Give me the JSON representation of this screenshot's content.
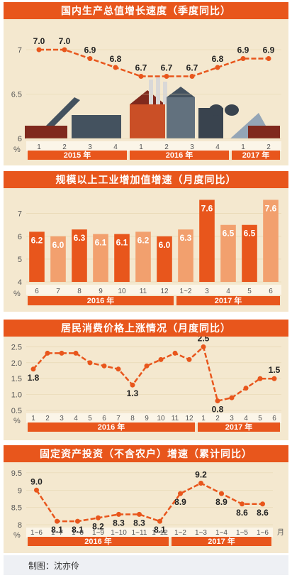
{
  "credit": "制图：沈亦伶",
  "colors": {
    "accent": "#e8561c",
    "light": "#f2a06e",
    "panel": "#f4e8cf",
    "dark_bar": "#e8561c"
  },
  "chart_data": [
    {
      "type": "line",
      "title": "国内生产总值增长速度（季度同比）",
      "ylabel": "%",
      "ylim": [
        6,
        7.2
      ],
      "yticks": [
        "6",
        "6.5",
        "7"
      ],
      "categories": [
        "1",
        "2",
        "3",
        "4",
        "1",
        "2",
        "3",
        "4",
        "1",
        "2"
      ],
      "values": [
        7.0,
        7.0,
        6.9,
        6.8,
        6.7,
        6.7,
        6.7,
        6.8,
        6.9,
        6.9
      ],
      "value_labels": [
        "7.0",
        "7.0",
        "6.9",
        "6.8",
        "6.7",
        "6.7",
        "6.7",
        "6.8",
        "6.9",
        "6.9"
      ],
      "groups": [
        {
          "label": "2015 年",
          "from": 0,
          "to": 3
        },
        {
          "label": "2016 年",
          "from": 4,
          "to": 7
        },
        {
          "label": "2017 年",
          "from": 8,
          "to": 9
        }
      ]
    },
    {
      "type": "bar",
      "title": "规模以上工业增加值增速（月度同比）",
      "ylabel": "%",
      "ylim": [
        4,
        7.8
      ],
      "yticks": [
        "4",
        "5",
        "6",
        "7"
      ],
      "categories": [
        "6",
        "7",
        "8",
        "9",
        "10",
        "11",
        "12",
        "1~2",
        "3",
        "4",
        "5",
        "6"
      ],
      "values": [
        6.2,
        6.0,
        6.3,
        6.1,
        6.1,
        6.2,
        6.0,
        6.3,
        7.6,
        6.5,
        6.5,
        7.6
      ],
      "value_labels": [
        "6.2",
        "6.0",
        "6.3",
        "6.1",
        "6.1",
        "6.2",
        "6.0",
        "6.3",
        "7.6",
        "6.5",
        "6.5",
        "7.6"
      ],
      "groups": [
        {
          "label": "2016 年",
          "from": 0,
          "to": 6
        },
        {
          "label": "2017 年",
          "from": 7,
          "to": 11
        }
      ]
    },
    {
      "type": "line",
      "title": "居民消费价格上涨情况（月度同比）",
      "ylabel": "%",
      "ylim": [
        0.5,
        2.6
      ],
      "yticks": [
        "0.5",
        "1.0",
        "1.5",
        "2.0",
        "2.5"
      ],
      "categories": [
        "1",
        "2",
        "3",
        "4",
        "5",
        "6",
        "7",
        "8",
        "9",
        "10",
        "11",
        "12",
        "1",
        "2",
        "3",
        "4",
        "5",
        "6"
      ],
      "values": [
        1.8,
        2.3,
        2.3,
        2.3,
        2.0,
        1.9,
        1.8,
        1.3,
        1.9,
        2.1,
        2.3,
        2.1,
        2.5,
        0.8,
        0.9,
        1.2,
        1.5,
        1.5
      ],
      "value_labels": [
        "1.8",
        "",
        "",
        "",
        "",
        "",
        "",
        "1.3",
        "",
        "",
        "",
        "",
        "2.5",
        "0.8",
        "",
        "",
        "",
        "1.5"
      ],
      "groups": [
        {
          "label": "2016 年",
          "from": 0,
          "to": 11
        },
        {
          "label": "2017 年",
          "from": 12,
          "to": 17
        }
      ]
    },
    {
      "type": "line",
      "title": "固定资产投资（不含农户）增速（累计同比）",
      "ylabel": "%",
      "xunit": "月",
      "ylim": [
        8,
        9.6
      ],
      "yticks": [
        "8",
        "8.5",
        "9",
        "9.5"
      ],
      "categories": [
        "1~6",
        "1~7",
        "1~8",
        "1~9",
        "1~10",
        "1~11",
        "1~12",
        "1~2",
        "1~3",
        "1~4",
        "1~5",
        "1~6"
      ],
      "values": [
        9.0,
        8.1,
        8.1,
        8.2,
        8.3,
        8.3,
        8.1,
        8.9,
        9.2,
        8.9,
        8.6,
        8.6
      ],
      "value_labels": [
        "9.0",
        "8.1",
        "8.1",
        "8.2",
        "8.3",
        "8.3",
        "8.1",
        "8.9",
        "9.2",
        "8.9",
        "8.6",
        "8.6"
      ],
      "groups": [
        {
          "label": "2016 年",
          "from": 0,
          "to": 6
        },
        {
          "label": "2017 年",
          "from": 7,
          "to": 11
        }
      ]
    }
  ]
}
